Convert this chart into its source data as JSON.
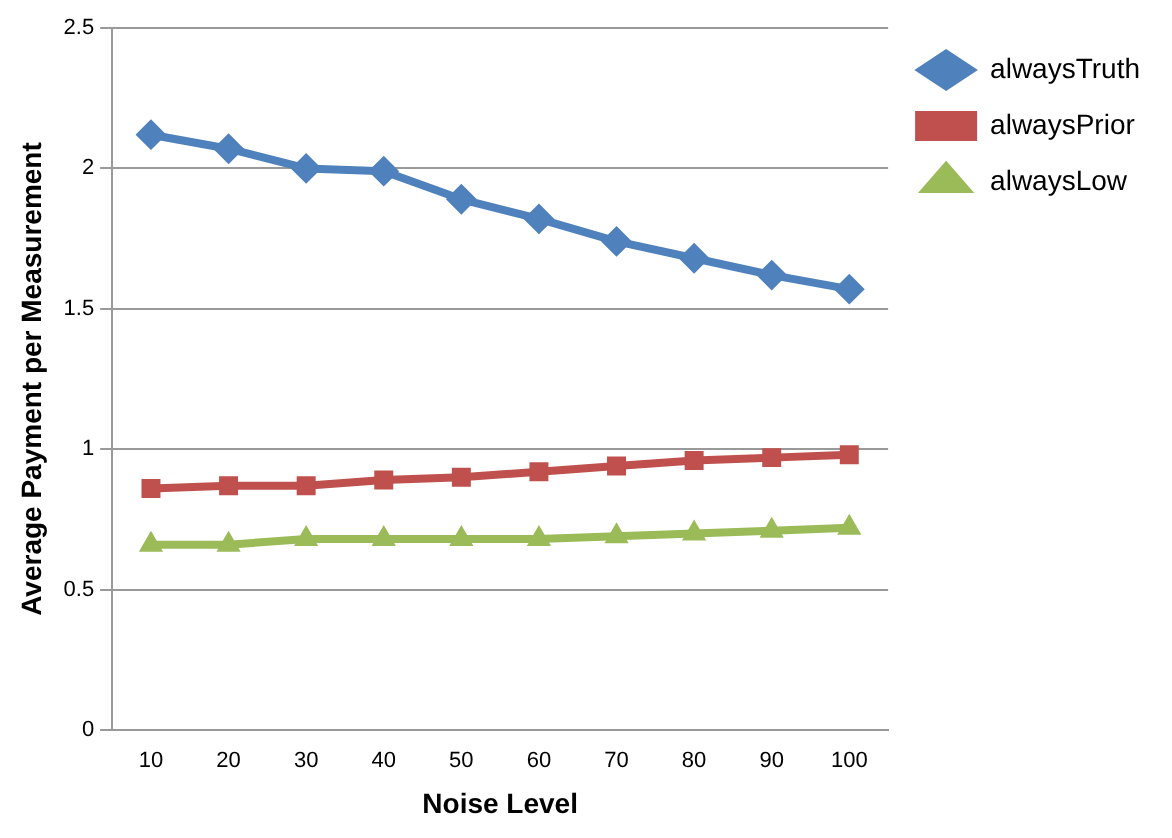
{
  "chart_data": {
    "type": "line",
    "xlabel": "Noise Level",
    "ylabel": "Average Payment per Measurement",
    "categories": [
      "10",
      "20",
      "30",
      "40",
      "50",
      "60",
      "70",
      "80",
      "90",
      "100"
    ],
    "series": [
      {
        "name": "alwaysTruth",
        "color": "#4f81bd",
        "marker": "diamond",
        "values": [
          2.12,
          2.07,
          2.0,
          1.99,
          1.89,
          1.82,
          1.74,
          1.68,
          1.62,
          1.57
        ]
      },
      {
        "name": "alwaysPrior",
        "color": "#c0504d",
        "marker": "square",
        "values": [
          0.86,
          0.87,
          0.87,
          0.89,
          0.9,
          0.92,
          0.94,
          0.96,
          0.97,
          0.98
        ]
      },
      {
        "name": "alwaysLow",
        "color": "#9bbb59",
        "marker": "triangle",
        "values": [
          0.66,
          0.66,
          0.68,
          0.68,
          0.68,
          0.68,
          0.69,
          0.7,
          0.71,
          0.72
        ]
      }
    ],
    "ylim": [
      0,
      2.5
    ],
    "yticks": [
      0,
      0.5,
      1,
      1.5,
      2,
      2.5
    ],
    "grid": "y",
    "legend": "top right",
    "line_style": "solid"
  }
}
